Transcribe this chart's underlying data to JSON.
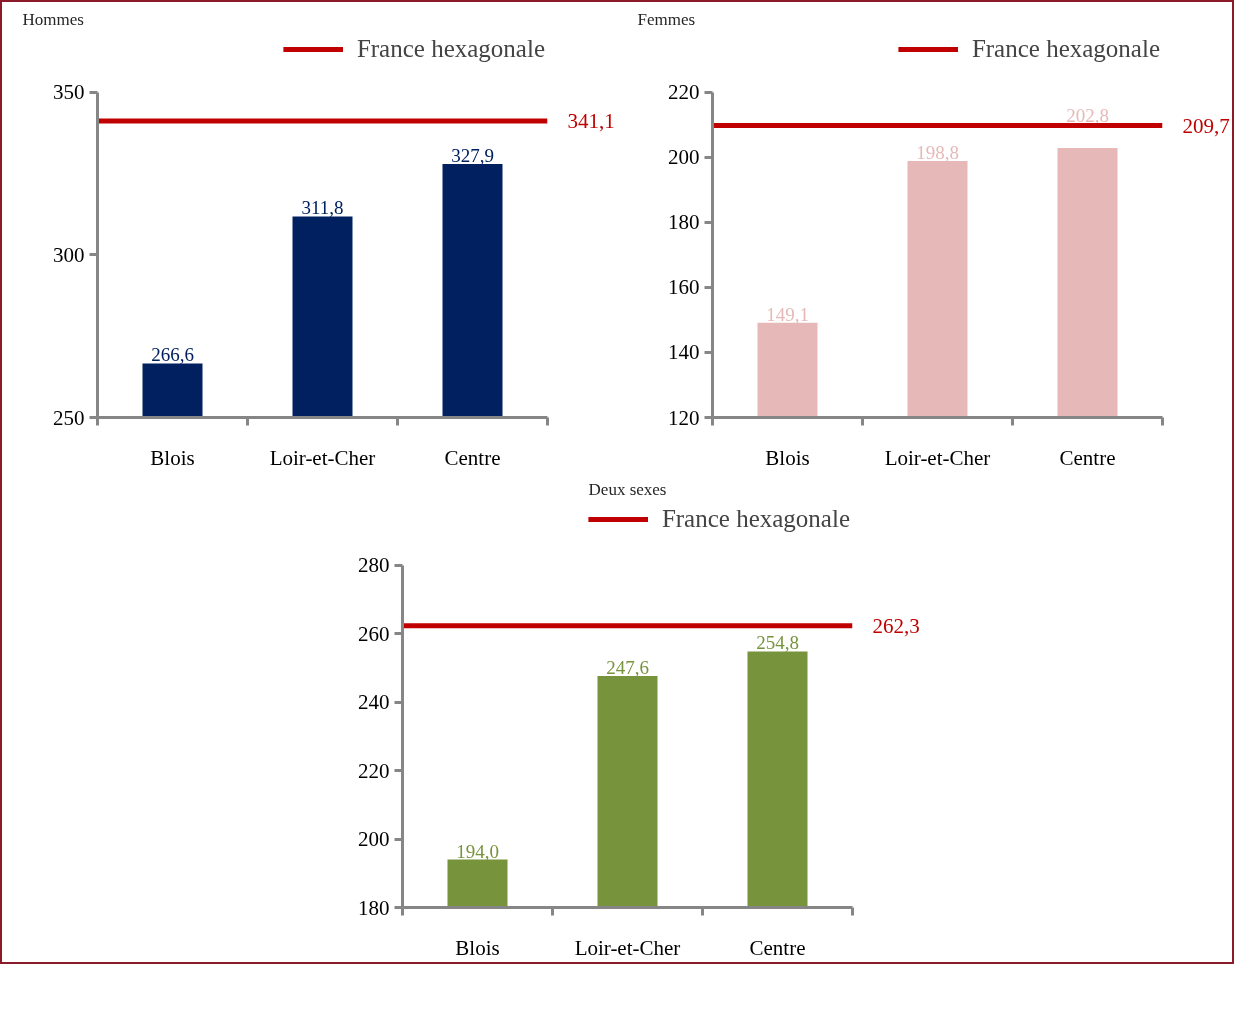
{
  "chart_data": [
    {
      "type": "bar",
      "title": "Hommes",
      "categories": [
        "Blois",
        "Loir-et-Cher",
        "Centre"
      ],
      "values": [
        266.6,
        311.8,
        327.9
      ],
      "color": "#002060",
      "value_labels": [
        "266,6",
        "311,8",
        "327,9"
      ],
      "ylim": [
        250,
        350
      ],
      "yticks": [
        250,
        300,
        350
      ],
      "grid": false,
      "legend": "top right",
      "ref_lines": [
        {
          "axis": "y",
          "value": 341.1,
          "label": "France hexagonale",
          "color": "#c00000"
        }
      ],
      "annotations": [
        "341,1"
      ]
    },
    {
      "type": "bar",
      "title": "Femmes",
      "categories": [
        "Blois",
        "Loir-et-Cher",
        "Centre"
      ],
      "values": [
        149.1,
        198.8,
        202.8
      ],
      "color": "#e6b9b8",
      "value_labels": [
        "149,1",
        "198,8",
        "202,8"
      ],
      "ylim": [
        120,
        220
      ],
      "yticks": [
        120,
        140,
        160,
        180,
        200,
        220
      ],
      "grid": false,
      "legend": "top right",
      "ref_lines": [
        {
          "axis": "y",
          "value": 209.7,
          "label": "France hexagonale",
          "color": "#c00000"
        }
      ],
      "annotations": [
        "209,7"
      ]
    },
    {
      "type": "bar",
      "title": "Deux sexes",
      "categories": [
        "Blois",
        "Loir-et-Cher",
        "Centre"
      ],
      "values": [
        194.0,
        247.6,
        254.8
      ],
      "color": "#77933c",
      "value_labels": [
        "194,0",
        "247,6",
        "254,8"
      ],
      "ylim": [
        180,
        280
      ],
      "yticks": [
        180,
        200,
        220,
        240,
        260,
        280
      ],
      "grid": false,
      "legend": "top right",
      "ref_lines": [
        {
          "axis": "y",
          "value": 262.3,
          "label": "France hexagonale",
          "color": "#c00000"
        }
      ],
      "annotations": [
        "262,3"
      ]
    }
  ]
}
